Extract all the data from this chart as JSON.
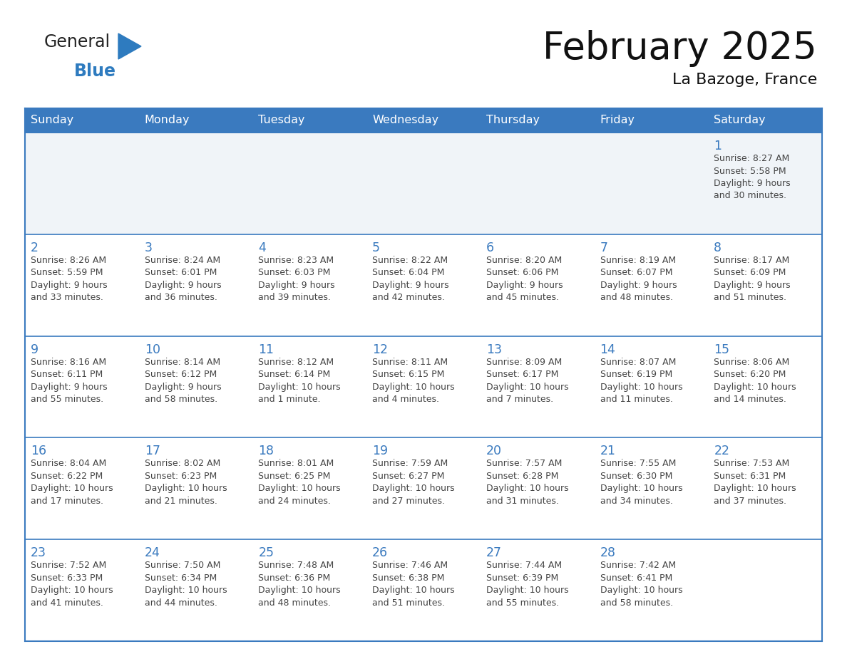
{
  "title": "February 2025",
  "subtitle": "La Bazoge, France",
  "days_of_week": [
    "Sunday",
    "Monday",
    "Tuesday",
    "Wednesday",
    "Thursday",
    "Friday",
    "Saturday"
  ],
  "header_bg": "#3a7abf",
  "header_text_color": "#ffffff",
  "cell_bg_white": "#ffffff",
  "cell_bg_gray": "#f0f4f8",
  "border_color": "#3a7abf",
  "day_number_color": "#3a7abf",
  "text_color": "#444444",
  "logo_text_color": "#222222",
  "logo_blue_color": "#2e7bbf",
  "logo_triangle_color": "#2e7bbf",
  "calendar_data": [
    [
      "",
      "",
      "",
      "",
      "",
      "",
      "1\nSunrise: 8:27 AM\nSunset: 5:58 PM\nDaylight: 9 hours\nand 30 minutes."
    ],
    [
      "2\nSunrise: 8:26 AM\nSunset: 5:59 PM\nDaylight: 9 hours\nand 33 minutes.",
      "3\nSunrise: 8:24 AM\nSunset: 6:01 PM\nDaylight: 9 hours\nand 36 minutes.",
      "4\nSunrise: 8:23 AM\nSunset: 6:03 PM\nDaylight: 9 hours\nand 39 minutes.",
      "5\nSunrise: 8:22 AM\nSunset: 6:04 PM\nDaylight: 9 hours\nand 42 minutes.",
      "6\nSunrise: 8:20 AM\nSunset: 6:06 PM\nDaylight: 9 hours\nand 45 minutes.",
      "7\nSunrise: 8:19 AM\nSunset: 6:07 PM\nDaylight: 9 hours\nand 48 minutes.",
      "8\nSunrise: 8:17 AM\nSunset: 6:09 PM\nDaylight: 9 hours\nand 51 minutes."
    ],
    [
      "9\nSunrise: 8:16 AM\nSunset: 6:11 PM\nDaylight: 9 hours\nand 55 minutes.",
      "10\nSunrise: 8:14 AM\nSunset: 6:12 PM\nDaylight: 9 hours\nand 58 minutes.",
      "11\nSunrise: 8:12 AM\nSunset: 6:14 PM\nDaylight: 10 hours\nand 1 minute.",
      "12\nSunrise: 8:11 AM\nSunset: 6:15 PM\nDaylight: 10 hours\nand 4 minutes.",
      "13\nSunrise: 8:09 AM\nSunset: 6:17 PM\nDaylight: 10 hours\nand 7 minutes.",
      "14\nSunrise: 8:07 AM\nSunset: 6:19 PM\nDaylight: 10 hours\nand 11 minutes.",
      "15\nSunrise: 8:06 AM\nSunset: 6:20 PM\nDaylight: 10 hours\nand 14 minutes."
    ],
    [
      "16\nSunrise: 8:04 AM\nSunset: 6:22 PM\nDaylight: 10 hours\nand 17 minutes.",
      "17\nSunrise: 8:02 AM\nSunset: 6:23 PM\nDaylight: 10 hours\nand 21 minutes.",
      "18\nSunrise: 8:01 AM\nSunset: 6:25 PM\nDaylight: 10 hours\nand 24 minutes.",
      "19\nSunrise: 7:59 AM\nSunset: 6:27 PM\nDaylight: 10 hours\nand 27 minutes.",
      "20\nSunrise: 7:57 AM\nSunset: 6:28 PM\nDaylight: 10 hours\nand 31 minutes.",
      "21\nSunrise: 7:55 AM\nSunset: 6:30 PM\nDaylight: 10 hours\nand 34 minutes.",
      "22\nSunrise: 7:53 AM\nSunset: 6:31 PM\nDaylight: 10 hours\nand 37 minutes."
    ],
    [
      "23\nSunrise: 7:52 AM\nSunset: 6:33 PM\nDaylight: 10 hours\nand 41 minutes.",
      "24\nSunrise: 7:50 AM\nSunset: 6:34 PM\nDaylight: 10 hours\nand 44 minutes.",
      "25\nSunrise: 7:48 AM\nSunset: 6:36 PM\nDaylight: 10 hours\nand 48 minutes.",
      "26\nSunrise: 7:46 AM\nSunset: 6:38 PM\nDaylight: 10 hours\nand 51 minutes.",
      "27\nSunrise: 7:44 AM\nSunset: 6:39 PM\nDaylight: 10 hours\nand 55 minutes.",
      "28\nSunrise: 7:42 AM\nSunset: 6:41 PM\nDaylight: 10 hours\nand 58 minutes.",
      ""
    ]
  ]
}
